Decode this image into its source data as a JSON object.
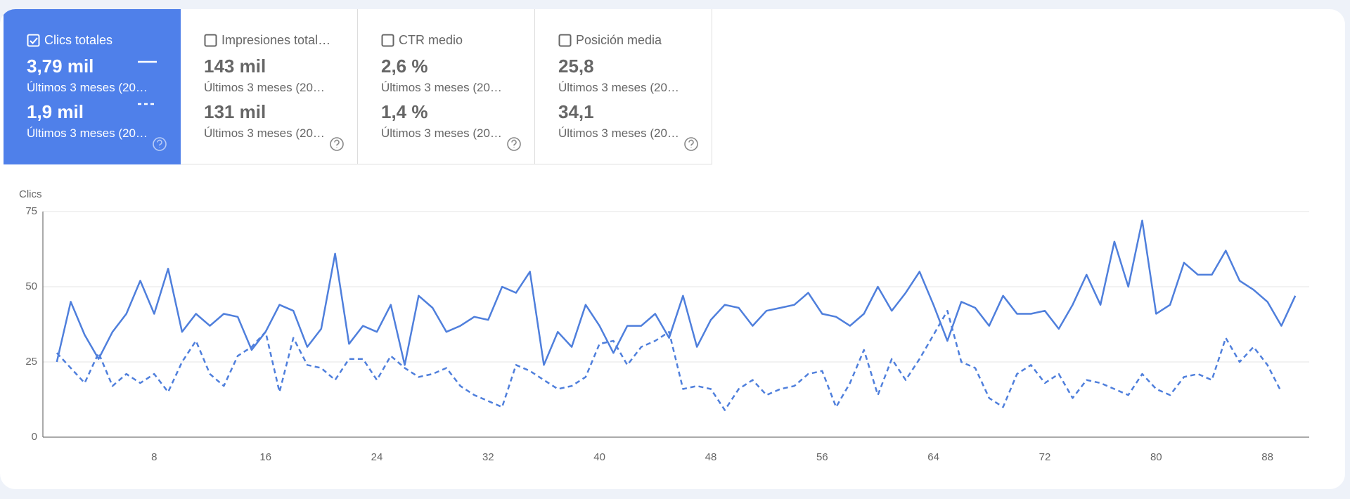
{
  "cards": [
    {
      "title": "Clics totales",
      "checked": true,
      "value1": "3,79 mil",
      "period1": "Últimos 3 meses (20…",
      "value2": "1,9 mil",
      "period2": "Últimos 3 meses (20…"
    },
    {
      "title": "Impresiones total…",
      "checked": false,
      "value1": "143 mil",
      "period1": "Últimos 3 meses (20…",
      "value2": "131 mil",
      "period2": "Últimos 3 meses (20…"
    },
    {
      "title": "CTR medio",
      "checked": false,
      "value1": "2,6 %",
      "period1": "Últimos 3 meses (20…",
      "value2": "1,4 %",
      "period2": "Últimos 3 meses (20…"
    },
    {
      "title": "Posición media",
      "checked": false,
      "value1": "25,8",
      "period1": "Últimos 3 meses (20…",
      "value2": "34,1",
      "period2": "Últimos 3 meses (20…"
    }
  ],
  "chart_data": {
    "type": "line",
    "y_label": "Clics",
    "x": [
      1,
      2,
      3,
      4,
      5,
      6,
      7,
      8,
      9,
      10,
      11,
      12,
      13,
      14,
      15,
      16,
      17,
      18,
      19,
      20,
      21,
      22,
      23,
      24,
      25,
      26,
      27,
      28,
      29,
      30,
      31,
      32,
      33,
      34,
      35,
      36,
      37,
      38,
      39,
      40,
      41,
      42,
      43,
      44,
      45,
      46,
      47,
      48,
      49,
      50,
      51,
      52,
      53,
      54,
      55,
      56,
      57,
      58,
      59,
      60,
      61,
      62,
      63,
      64,
      65,
      66,
      67,
      68,
      69,
      70,
      71,
      72,
      73,
      74,
      75,
      76,
      77,
      78,
      79,
      80,
      81,
      82,
      83,
      84,
      85,
      86,
      87,
      88,
      89,
      90
    ],
    "series": [
      {
        "color": "#4f7fdc",
        "dashed": false,
        "values": [
          25,
          45,
          34,
          26,
          35,
          41,
          52,
          41,
          56,
          35,
          41,
          37,
          41,
          40,
          29,
          35,
          44,
          42,
          30,
          36,
          61,
          31,
          37,
          35,
          44,
          24,
          47,
          43,
          35,
          37,
          40,
          39,
          50,
          48,
          55,
          24,
          35,
          30,
          44,
          37,
          28,
          37,
          37,
          41,
          33,
          47,
          30,
          39,
          44,
          43,
          37,
          42,
          43,
          44,
          48,
          41,
          40,
          37,
          41,
          50,
          42,
          48,
          55,
          44,
          32,
          45,
          43,
          37,
          47,
          41,
          41,
          42,
          36,
          44,
          54,
          44,
          65,
          50,
          72,
          41,
          44,
          58,
          54,
          54,
          62,
          52,
          49,
          45,
          37,
          47
        ]
      },
      {
        "color": "#4f7fdc",
        "dashed": true,
        "values": [
          28,
          23,
          18,
          28,
          17,
          21,
          18,
          21,
          15,
          25,
          32,
          21,
          17,
          27,
          30,
          35,
          15,
          33,
          24,
          23,
          19,
          26,
          26,
          19,
          27,
          23,
          20,
          21,
          23,
          17,
          14,
          12,
          10,
          24,
          22,
          19,
          16,
          17,
          20,
          31,
          32,
          24,
          30,
          32,
          35,
          16,
          17,
          16,
          9,
          16,
          19,
          14,
          16,
          17,
          21,
          22,
          10,
          18,
          29,
          14,
          26,
          19,
          26,
          34,
          42,
          25,
          23,
          13,
          10,
          21,
          24,
          18,
          21,
          13,
          19,
          18,
          16,
          14,
          21,
          16,
          14,
          20,
          21,
          19,
          33,
          25,
          30,
          24,
          15,
          null
        ]
      }
    ],
    "xlim": [
      0,
      91
    ],
    "xticks": [
      8,
      16,
      24,
      32,
      40,
      48,
      56,
      64,
      72,
      80,
      88
    ],
    "ylim": [
      0,
      75
    ],
    "yticks": [
      0,
      25,
      50,
      75
    ],
    "grid": true
  }
}
